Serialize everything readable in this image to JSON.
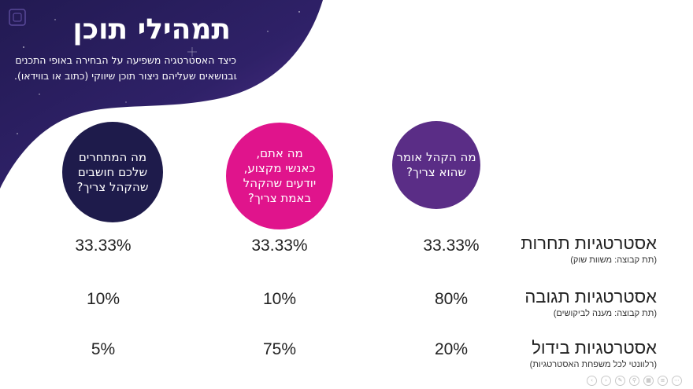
{
  "title": "תמהילי תוכן",
  "subtitle": "כיצד האסטרטגיה משפיעה על הבחירה באופי התכנים ובנושאים שעליהם ניצור תוכן שיווקי (כתוב או בווידאו).",
  "circles": [
    {
      "text": "מה הקהל אומר\nשהוא צריך?",
      "color": "#5a2d86"
    },
    {
      "text": "מה אתם,\nכאנשי מקצוע,\nיודעים שהקהל\nבאמת צריך?",
      "color": "#e0148c"
    },
    {
      "text": "מה המתחרים\nשלכם חושבים\nשהקהל צריך?",
      "color": "#1e1b4b"
    }
  ],
  "rows": [
    {
      "label": "אסטרטגיות תחרות",
      "sublabel": "(תת קבוצה: משוות שוק)",
      "values": [
        "33.33%",
        "33.33%",
        "33.33%"
      ]
    },
    {
      "label": "אסטרטגיות תגובה",
      "sublabel": "(תת קבוצה: מענה לביקושים)",
      "values": [
        "80%",
        "10%",
        "10%"
      ]
    },
    {
      "label": "אסטרטגיות בידול",
      "sublabel": "(רלוונטי לכל משפחת האסטרטגיות)",
      "values": [
        "20%",
        "75%",
        "5%"
      ]
    }
  ],
  "nav_icons": [
    "prev-icon",
    "next-icon",
    "pen-icon",
    "zoom-icon",
    "more-icon",
    "grid-icon",
    "menu-icon"
  ],
  "colors": {
    "header_dark": "#1a1545",
    "header_purple": "#4a2a8a",
    "accent_magenta": "#e0148c"
  }
}
